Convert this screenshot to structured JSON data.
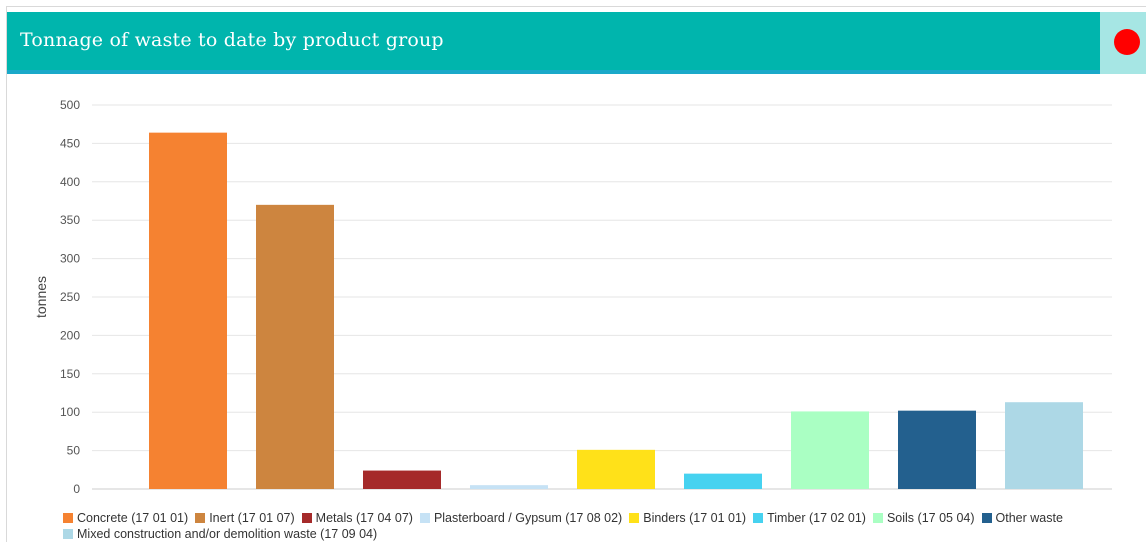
{
  "header": {
    "title": "Tonnage of waste to date by product group",
    "status_color": "#ff0000",
    "accent_color": "#00b5ad"
  },
  "chart_data": {
    "type": "bar",
    "title": "",
    "xlabel": "",
    "ylabel": "tonnes",
    "ylim": [
      0,
      500
    ],
    "yticks": [
      0,
      50,
      100,
      150,
      200,
      250,
      300,
      350,
      400,
      450,
      500
    ],
    "grid": true,
    "legend_placement": "bottom",
    "categories": [
      "Concrete (17 01 01)",
      "Inert (17 01 07)",
      "Metals (17 04 07)",
      "Plasterboard / Gypsum (17 08 02)",
      "Binders (17 01 01)",
      "Timber (17 02 01)",
      "Soils (17 05 04)",
      "Other waste",
      "Mixed construction and/or demolition waste (17 09 04)"
    ],
    "values": [
      464,
      370,
      24,
      5,
      51,
      20,
      101,
      102,
      113
    ],
    "colors": [
      "#f58231",
      "#cd853f",
      "#a52a2a",
      "#c6e2f5",
      "#ffe119",
      "#46d2f0",
      "#aaffc3",
      "#23608e",
      "#add8e6"
    ]
  }
}
